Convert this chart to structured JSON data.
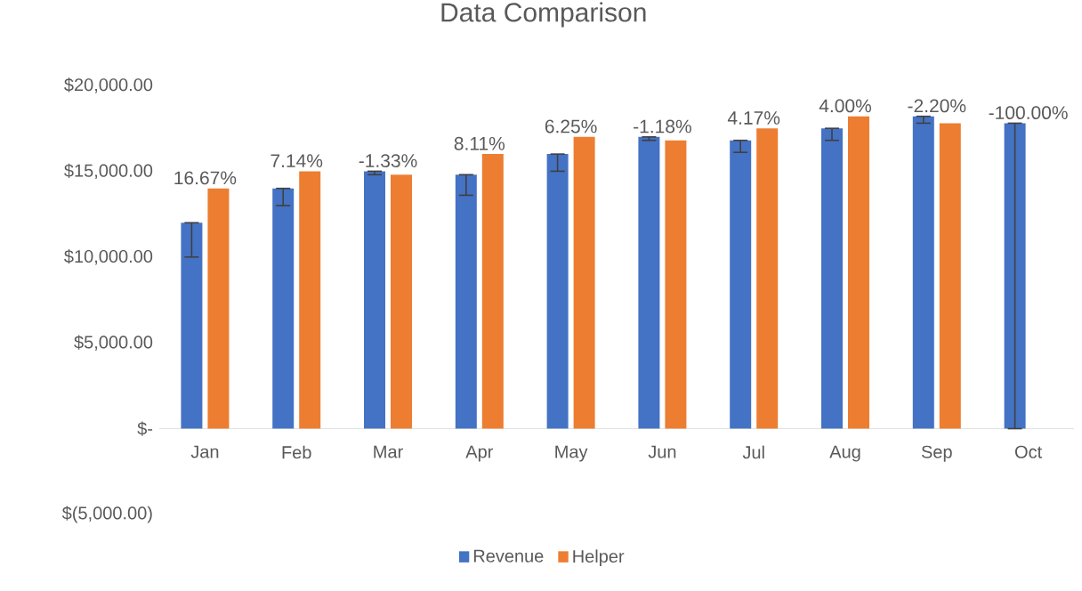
{
  "chart_data": {
    "type": "bar",
    "title": "Data Comparison",
    "categories": [
      "Jan",
      "Feb",
      "Mar",
      "Apr",
      "May",
      "Jun",
      "Jul",
      "Aug",
      "Sep",
      "Oct"
    ],
    "series": [
      {
        "name": "Revenue",
        "color": "#4472c4",
        "values": [
          12000,
          14000,
          15000,
          14800,
          16000,
          17000,
          16800,
          17500,
          18200,
          17800
        ],
        "errors": [
          [
            10000,
            12000
          ],
          [
            13000,
            14000
          ],
          [
            14800,
            15000
          ],
          [
            13600,
            14800
          ],
          [
            15000,
            16000
          ],
          [
            16800,
            17000
          ],
          [
            16100,
            16800
          ],
          [
            16800,
            17500
          ],
          [
            17800,
            18200
          ],
          [
            0,
            17800
          ]
        ]
      },
      {
        "name": "Helper",
        "color": "#ed7d31",
        "values": [
          14000,
          15000,
          14800,
          16000,
          17000,
          16800,
          17500,
          18200,
          17800,
          0
        ]
      }
    ],
    "ylim": [
      -5000,
      20000
    ],
    "yticks": [
      {
        "value": -5000,
        "label": "$(5,000.00)"
      },
      {
        "value": 0,
        "label": "$-"
      },
      {
        "value": 5000,
        "label": "$5,000.00"
      },
      {
        "value": 10000,
        "label": "$10,000.00"
      },
      {
        "value": 15000,
        "label": "$15,000.00"
      },
      {
        "value": 20000,
        "label": "$20,000.00"
      }
    ],
    "annotations": [
      {
        "text": "16.67%",
        "x": "Jan",
        "y": 14000
      },
      {
        "text": "7.14%",
        "x": "Feb",
        "y": 15000
      },
      {
        "text": "-1.33%",
        "x": "Mar",
        "y": 15000
      },
      {
        "text": "8.11%",
        "x": "Apr",
        "y": 16000
      },
      {
        "text": "6.25%",
        "x": "May",
        "y": 17000
      },
      {
        "text": "-1.18%",
        "x": "Jun",
        "y": 17000
      },
      {
        "text": "4.17%",
        "x": "Jul",
        "y": 17500
      },
      {
        "text": "4.00%",
        "x": "Aug",
        "y": 18200
      },
      {
        "text": "-2.20%",
        "x": "Sep",
        "y": 18200
      },
      {
        "text": "-100.00%",
        "x": "Oct",
        "y": 17800
      }
    ],
    "grid": false,
    "legend": "bottom"
  }
}
